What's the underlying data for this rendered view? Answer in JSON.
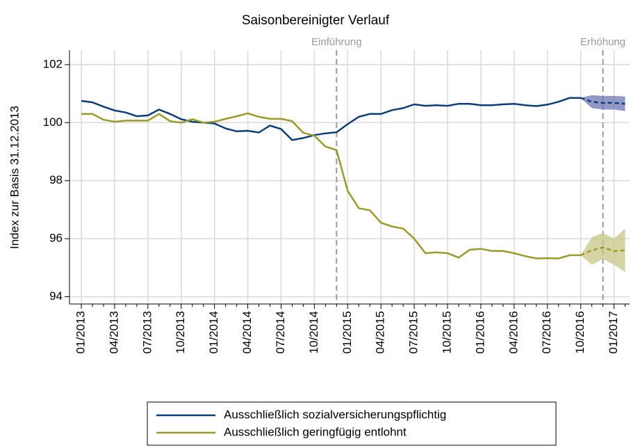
{
  "chart_data": {
    "type": "line",
    "title": "Saisonbereinigter Verlauf",
    "y_label": "Index zur Basis 31.12.2013",
    "categories": [
      "01/2013",
      null,
      null,
      "04/2013",
      null,
      null,
      "07/2013",
      null,
      null,
      "10/2013",
      null,
      null,
      "01/2014",
      null,
      null,
      "04/2014",
      null,
      null,
      "07/2014",
      null,
      null,
      "10/2014",
      null,
      null,
      "01/2015",
      null,
      null,
      "04/2015",
      null,
      null,
      "07/2015",
      null,
      null,
      "10/2015",
      null,
      null,
      "01/2016",
      null,
      null,
      "04/2016",
      null,
      null,
      "07/2016",
      null,
      null,
      "10/2016",
      null,
      null,
      "01/2017",
      null
    ],
    "series": [
      {
        "name": "Ausschließlich sozialversicherungspflichtig",
        "color": "#0b3d78",
        "band_color": "#6f76b3",
        "values": [
          100.75,
          100.7,
          100.55,
          100.42,
          100.35,
          100.22,
          100.25,
          100.45,
          100.3,
          100.12,
          100.03,
          100.0,
          99.97,
          99.8,
          99.7,
          99.72,
          99.66,
          99.9,
          99.78,
          99.4,
          99.47,
          99.57,
          99.63,
          99.67,
          99.95,
          100.2,
          100.3,
          100.3,
          100.43,
          100.5,
          100.63,
          100.58,
          100.6,
          100.58,
          100.65,
          100.65,
          100.6,
          100.6,
          100.63,
          100.65,
          100.6,
          100.57,
          100.62,
          100.72,
          100.85,
          100.85,
          null,
          null,
          null,
          null
        ],
        "forecast": [
          null,
          null,
          null,
          null,
          null,
          null,
          null,
          null,
          null,
          null,
          null,
          null,
          null,
          null,
          null,
          null,
          null,
          null,
          null,
          null,
          null,
          null,
          null,
          null,
          null,
          null,
          null,
          null,
          null,
          null,
          null,
          null,
          null,
          null,
          null,
          null,
          null,
          null,
          null,
          null,
          null,
          null,
          null,
          null,
          null,
          100.85,
          100.72,
          100.68,
          100.68,
          100.65
        ],
        "lower": [
          null,
          null,
          null,
          null,
          null,
          null,
          null,
          null,
          null,
          null,
          null,
          null,
          null,
          null,
          null,
          null,
          null,
          null,
          null,
          null,
          null,
          null,
          null,
          null,
          null,
          null,
          null,
          null,
          null,
          null,
          null,
          null,
          null,
          null,
          null,
          null,
          null,
          null,
          null,
          null,
          null,
          null,
          null,
          null,
          null,
          100.85,
          100.5,
          100.45,
          100.45,
          100.4
        ],
        "upper": [
          null,
          null,
          null,
          null,
          null,
          null,
          null,
          null,
          null,
          null,
          null,
          null,
          null,
          null,
          null,
          null,
          null,
          null,
          null,
          null,
          null,
          null,
          null,
          null,
          null,
          null,
          null,
          null,
          null,
          null,
          null,
          null,
          null,
          null,
          null,
          null,
          null,
          null,
          null,
          null,
          null,
          null,
          null,
          null,
          null,
          100.85,
          100.95,
          100.92,
          100.92,
          100.9
        ]
      },
      {
        "name": "Ausschließlich geringfügig entlohnt",
        "color": "#9a9a2a",
        "band_color": "#c6c586",
        "values": [
          100.3,
          100.3,
          100.1,
          100.03,
          100.07,
          100.07,
          100.07,
          100.3,
          100.05,
          100.0,
          100.12,
          100.0,
          100.03,
          100.13,
          100.22,
          100.32,
          100.2,
          100.13,
          100.13,
          100.05,
          99.65,
          99.55,
          99.18,
          99.05,
          97.65,
          97.05,
          96.98,
          96.55,
          96.42,
          96.35,
          96.0,
          95.5,
          95.53,
          95.5,
          95.35,
          95.62,
          95.65,
          95.58,
          95.58,
          95.5,
          95.4,
          95.32,
          95.33,
          95.32,
          95.43,
          95.43,
          null,
          null,
          null,
          null
        ],
        "forecast": [
          null,
          null,
          null,
          null,
          null,
          null,
          null,
          null,
          null,
          null,
          null,
          null,
          null,
          null,
          null,
          null,
          null,
          null,
          null,
          null,
          null,
          null,
          null,
          null,
          null,
          null,
          null,
          null,
          null,
          null,
          null,
          null,
          null,
          null,
          null,
          null,
          null,
          null,
          null,
          null,
          null,
          null,
          null,
          null,
          null,
          95.43,
          95.6,
          95.7,
          95.57,
          95.6
        ],
        "lower": [
          null,
          null,
          null,
          null,
          null,
          null,
          null,
          null,
          null,
          null,
          null,
          null,
          null,
          null,
          null,
          null,
          null,
          null,
          null,
          null,
          null,
          null,
          null,
          null,
          null,
          null,
          null,
          null,
          null,
          null,
          null,
          null,
          null,
          null,
          null,
          null,
          null,
          null,
          null,
          null,
          null,
          null,
          null,
          null,
          null,
          95.43,
          95.1,
          95.3,
          95.1,
          94.85
        ],
        "upper": [
          null,
          null,
          null,
          null,
          null,
          null,
          null,
          null,
          null,
          null,
          null,
          null,
          null,
          null,
          null,
          null,
          null,
          null,
          null,
          null,
          null,
          null,
          null,
          null,
          null,
          null,
          null,
          null,
          null,
          null,
          null,
          null,
          null,
          null,
          null,
          null,
          null,
          null,
          null,
          null,
          null,
          null,
          null,
          null,
          null,
          95.43,
          96.05,
          96.2,
          96.0,
          96.35
        ]
      }
    ],
    "annotations": [
      {
        "text": "Einführung",
        "x": 23
      },
      {
        "text": "Erhöhung",
        "x": 47
      }
    ],
    "ylim": [
      93.75,
      102.5
    ],
    "yticks": [
      94,
      96,
      98,
      100,
      102
    ],
    "grid": true,
    "legend": "bottom"
  }
}
